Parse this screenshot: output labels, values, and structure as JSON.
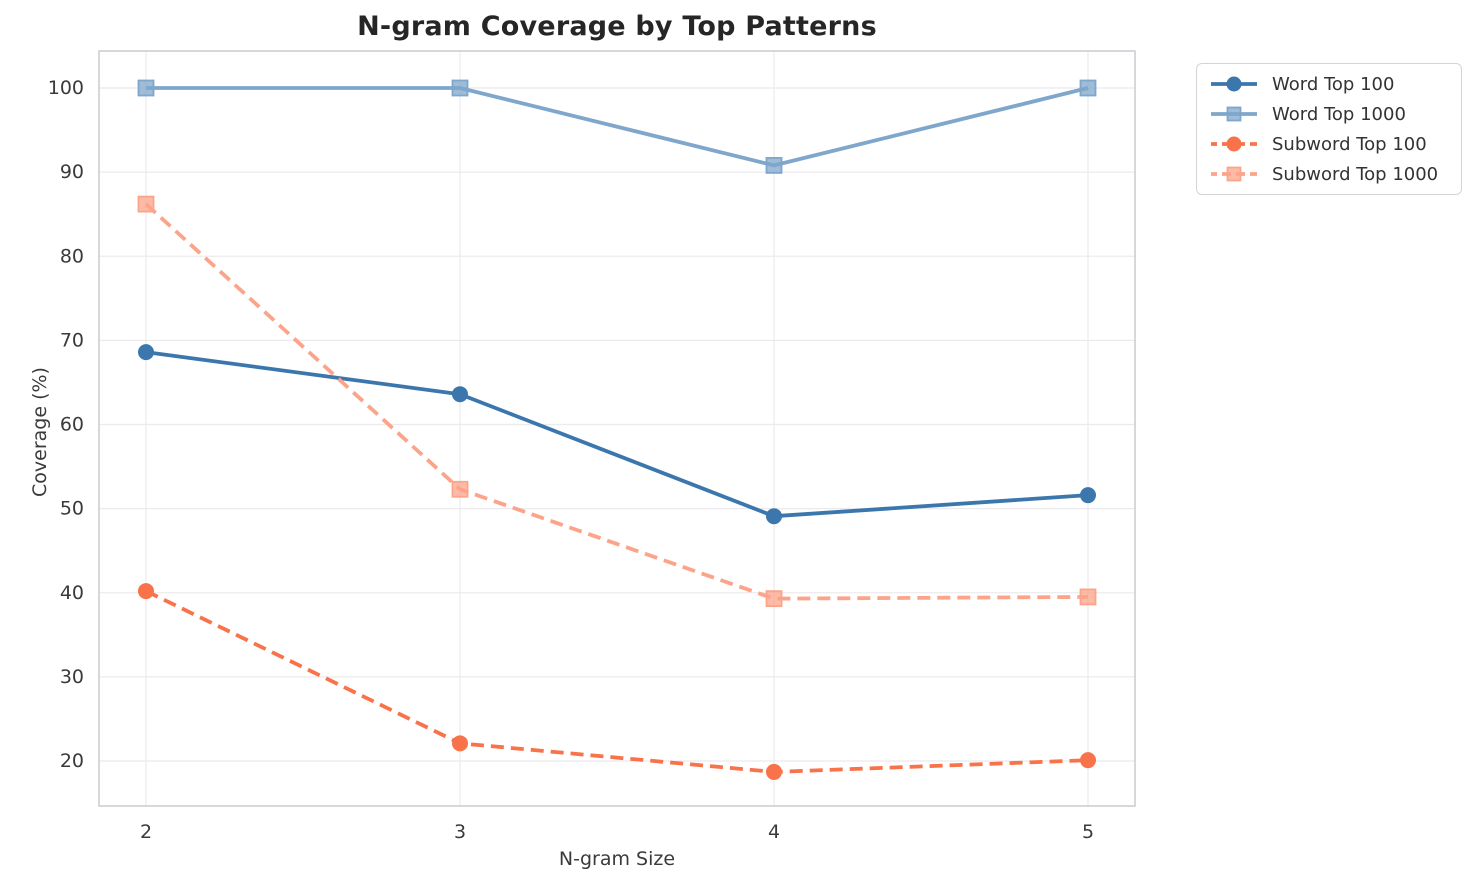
{
  "chart_data": {
    "type": "line",
    "title": "N-gram Coverage by Top Patterns",
    "xlabel": "N-gram Size",
    "ylabel": "Coverage (%)",
    "x": [
      2,
      3,
      4,
      5
    ],
    "xticks": [
      2,
      3,
      4,
      5
    ],
    "yticks": [
      20,
      30,
      40,
      50,
      60,
      70,
      80,
      90,
      100
    ],
    "xlim": [
      1.85,
      5.15
    ],
    "ylim": [
      14.6,
      104.4
    ],
    "grid": true,
    "legend_position": "outside upper right",
    "series": [
      {
        "name": "Word Top 100",
        "values": [
          68.6,
          63.6,
          49.1,
          51.6
        ],
        "color": "#3b77ad",
        "marker": "circle",
        "linestyle": "solid"
      },
      {
        "name": "Word Top 1000",
        "values": [
          100.0,
          100.0,
          90.8,
          100.0
        ],
        "color": "#7fa6cb",
        "marker": "square",
        "linestyle": "solid"
      },
      {
        "name": "Subword Top 100",
        "values": [
          40.2,
          22.1,
          18.7,
          20.1
        ],
        "color": "#f8724a",
        "marker": "circle",
        "linestyle": "dashed"
      },
      {
        "name": "Subword Top 1000",
        "values": [
          86.2,
          52.3,
          39.3,
          39.5
        ],
        "color": "#fca48a",
        "marker": "square",
        "linestyle": "dashed"
      }
    ]
  },
  "style_colors": {
    "grid": "#ebebee",
    "spine": "#c8c8cd",
    "tick_text": "#3a3a3a",
    "title_text": "#262626",
    "legend_border": "#d4d4d4"
  }
}
